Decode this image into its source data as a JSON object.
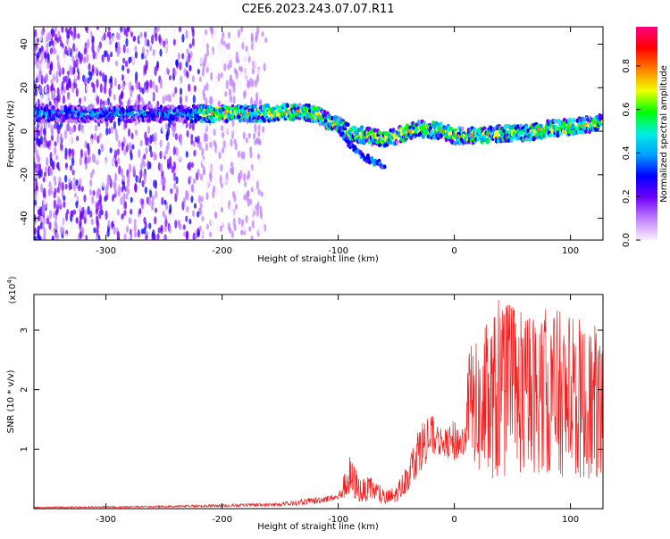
{
  "page": {
    "title": "C2E6.2023.243.07.07.R11"
  },
  "colors": {
    "snr_line": "#ee2222",
    "axis": "#000000",
    "colorbar": [
      "#f8f0ff",
      "#c080ff",
      "#7000ff",
      "#0000ff",
      "#00a0ff",
      "#00f0e0",
      "#00ff00",
      "#f0ff00",
      "#ff8000",
      "#ff0000",
      "#ff0080"
    ]
  },
  "chart_data": [
    {
      "type": "heatmap",
      "title": "C2E6.2023.243.07.07.R11",
      "xlabel": "Height of straight line (km)",
      "ylabel": "Frequency (Hz)",
      "xlim": [
        -362,
        128
      ],
      "ylim": [
        -50,
        48
      ],
      "xticks": [
        -300,
        -200,
        -100,
        0,
        100
      ],
      "yticks": [
        -40,
        -20,
        0,
        20,
        40
      ],
      "colorbar": {
        "label": "Normalized spectral amplitude",
        "range": [
          0,
          0.98
        ],
        "ticks": [
          0.0,
          0.2,
          0.4,
          0.6,
          0.8
        ]
      },
      "ridge": {
        "x": [
          -350,
          -300,
          -250,
          -200,
          -170,
          -140,
          -120,
          -110,
          -100,
          -90,
          -75,
          -60,
          -45,
          -30,
          -10,
          0,
          20,
          40,
          60,
          80,
          100,
          128
        ],
        "y": [
          8,
          8,
          8,
          8,
          8,
          9,
          8,
          5,
          3,
          -1,
          -2,
          -4,
          -1,
          1,
          0,
          -2,
          -2,
          -1,
          -1,
          1,
          2,
          4
        ]
      },
      "branch": {
        "x": [
          -100,
          -90,
          -80,
          -70,
          -60
        ],
        "y": [
          1,
          -6,
          -11,
          -14,
          -16
        ]
      }
    },
    {
      "type": "line",
      "xlabel": "Height of straight line (km)",
      "ylabel": "SNR (10 * v/v)",
      "scale_label": "(x10",
      "scale_exponent": "4",
      "scale_close": ")",
      "xlim": [
        -362,
        128
      ],
      "ylim": [
        0,
        3.6
      ],
      "xticks": [
        -300,
        -200,
        -100,
        0,
        100
      ],
      "yticks": [
        1,
        2,
        3
      ],
      "envelope": {
        "x": [
          -362,
          -250,
          -150,
          -120,
          -100,
          -90,
          -80,
          -70,
          -60,
          -50,
          -40,
          -30,
          -20,
          -10,
          0,
          10,
          12,
          20,
          30,
          40,
          60,
          80,
          100,
          128
        ],
        "base": [
          0.01,
          0.02,
          0.04,
          0.08,
          0.15,
          0.2,
          0.1,
          0.15,
          0.05,
          0.1,
          0.3,
          0.6,
          0.9,
          0.9,
          0.8,
          0.9,
          1.1,
          0.6,
          0.5,
          0.5,
          0.6,
          0.6,
          0.5,
          0.5
        ],
        "peak": [
          0.03,
          0.05,
          0.1,
          0.2,
          0.25,
          0.9,
          0.5,
          0.55,
          0.3,
          0.4,
          0.8,
          1.5,
          1.6,
          1.3,
          1.5,
          1.4,
          2.8,
          2.8,
          3.2,
          3.6,
          3.3,
          3.4,
          3.3,
          3.0
        ]
      }
    }
  ]
}
